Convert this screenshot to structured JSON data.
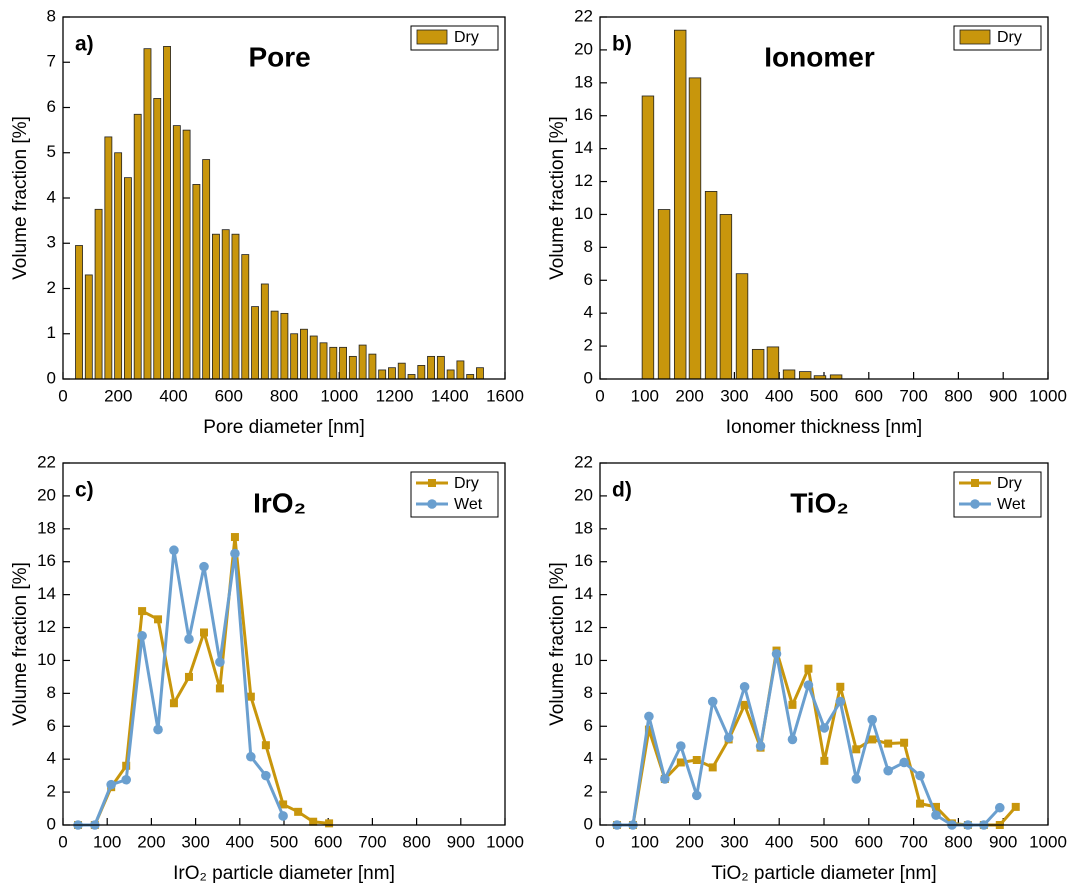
{
  "chart_data": [
    {
      "type": "bar",
      "label": "a)",
      "title": "Pore",
      "xlabel": "Pore diameter [nm]",
      "ylabel": "Volume fraction [%]",
      "x": [
        58,
        93.4,
        128.8,
        164.2,
        199.6,
        235,
        270.4,
        305.8,
        341.2,
        376.6,
        412,
        447.4,
        482.8,
        518.2,
        553.6,
        589,
        624.4,
        659.8,
        695.2,
        730.6,
        766,
        801.4,
        836.8,
        872.2,
        907.6,
        943,
        978.4,
        1013.8,
        1049.2,
        1084.6,
        1120,
        1155.4,
        1190.8,
        1226.2,
        1261.6,
        1297,
        1332.4,
        1367.8,
        1403.2,
        1438.6,
        1474,
        1509.4
      ],
      "series": [
        {
          "name": "Dry",
          "color": "#c8960c",
          "values": [
            2.95,
            2.3,
            3.75,
            5.35,
            5.0,
            4.45,
            5.85,
            7.3,
            6.2,
            7.35,
            5.6,
            5.5,
            4.3,
            4.85,
            3.2,
            3.3,
            3.2,
            2.75,
            1.6,
            2.1,
            1.5,
            1.45,
            1.0,
            1.1,
            0.95,
            0.8,
            0.7,
            0.7,
            0.5,
            0.75,
            0.55,
            0.2,
            0.25,
            0.35,
            0.1,
            0.3,
            0.5,
            0.5,
            0.2,
            0.4,
            0.1,
            0.25
          ]
        }
      ],
      "xlim": [
        0,
        1600
      ],
      "xticks": [
        0,
        200,
        400,
        600,
        800,
        1000,
        1200,
        1400,
        1600
      ],
      "ylim": [
        0,
        8
      ],
      "yticks": [
        0,
        1,
        2,
        3,
        4,
        5,
        6,
        7,
        8
      ]
    },
    {
      "type": "bar",
      "label": "b)",
      "title": "Ionomer",
      "xlabel": "Ionomer thickness [nm]",
      "ylabel": "Volume fraction [%]",
      "x": [
        107,
        143,
        179,
        212,
        248,
        281,
        317,
        353,
        386,
        422,
        458,
        491,
        527
      ],
      "series": [
        {
          "name": "Dry",
          "color": "#c8960c",
          "values": [
            17.2,
            10.3,
            21.2,
            18.3,
            11.4,
            10.0,
            6.4,
            1.8,
            1.95,
            0.55,
            0.45,
            0.2,
            0.25
          ]
        }
      ],
      "xlim": [
        0,
        1000
      ],
      "xticks": [
        0,
        100,
        200,
        300,
        400,
        500,
        600,
        700,
        800,
        900,
        1000
      ],
      "ylim": [
        0,
        22
      ],
      "yticks": [
        0,
        2,
        4,
        6,
        8,
        10,
        12,
        14,
        16,
        18,
        20,
        22
      ]
    },
    {
      "type": "line",
      "label": "c)",
      "title": "IrO₂",
      "xlabel": "IrO₂ particle diameter [nm]",
      "ylabel": "Volume fraction [%]",
      "x": [
        34,
        72,
        109,
        143,
        179,
        215,
        251,
        285,
        319,
        355,
        389,
        425,
        459,
        498,
        532,
        566,
        602
      ],
      "series": [
        {
          "name": "Dry",
          "color": "#c8960c",
          "marker": "square",
          "values": [
            0,
            0,
            2.3,
            3.6,
            13.0,
            12.5,
            7.4,
            9.0,
            11.7,
            8.3,
            17.5,
            7.8,
            4.85,
            1.25,
            0.8,
            0.2,
            0.1
          ]
        },
        {
          "name": "Wet",
          "color": "#6a9fcf",
          "marker": "circle",
          "values": [
            0,
            0,
            2.45,
            2.75,
            11.5,
            5.8,
            16.7,
            11.3,
            15.7,
            9.9,
            16.5,
            4.15,
            3.0,
            0.55,
            null,
            null,
            null
          ]
        }
      ],
      "xlim": [
        0,
        1000
      ],
      "xticks": [
        0,
        100,
        200,
        300,
        400,
        500,
        600,
        700,
        800,
        900,
        1000
      ],
      "ylim": [
        0,
        22
      ],
      "yticks": [
        0,
        2,
        4,
        6,
        8,
        10,
        12,
        14,
        16,
        18,
        20,
        22
      ]
    },
    {
      "type": "line",
      "label": "d)",
      "title": "TiO₂",
      "xlabel": "TiO₂ particle diameter [nm]",
      "ylabel": "Volume fraction [%]",
      "x": [
        38,
        73.6,
        109.2,
        144.8,
        180.4,
        216,
        251.6,
        287.2,
        322.8,
        358.4,
        394,
        429.6,
        465.2,
        500.8,
        536.4,
        572,
        607.6,
        643.2,
        678.8,
        714.4,
        750,
        785.6,
        821.2,
        856.8,
        892.4,
        928
      ],
      "series": [
        {
          "name": "Dry",
          "color": "#c8960c",
          "marker": "square",
          "values": [
            0,
            0,
            5.8,
            2.8,
            3.8,
            3.95,
            3.5,
            5.2,
            7.3,
            4.7,
            10.6,
            7.3,
            9.5,
            3.9,
            8.4,
            4.6,
            5.2,
            4.95,
            5.0,
            1.3,
            1.1,
            0.1,
            0,
            0,
            0,
            1.1
          ]
        },
        {
          "name": "Wet",
          "color": "#6a9fcf",
          "marker": "circle",
          "values": [
            0,
            0,
            6.6,
            2.8,
            4.8,
            1.8,
            7.5,
            5.3,
            8.4,
            4.8,
            10.4,
            5.2,
            8.5,
            5.9,
            7.5,
            2.8,
            6.4,
            3.3,
            3.8,
            3.0,
            0.6,
            0,
            0,
            0,
            1.05,
            null
          ]
        }
      ],
      "xlim": [
        0,
        1000
      ],
      "xticks": [
        0,
        100,
        200,
        300,
        400,
        500,
        600,
        700,
        800,
        900,
        1000
      ],
      "ylim": [
        0,
        22
      ],
      "yticks": [
        0,
        2,
        4,
        6,
        8,
        10,
        12,
        14,
        16,
        18,
        20,
        22
      ]
    }
  ]
}
